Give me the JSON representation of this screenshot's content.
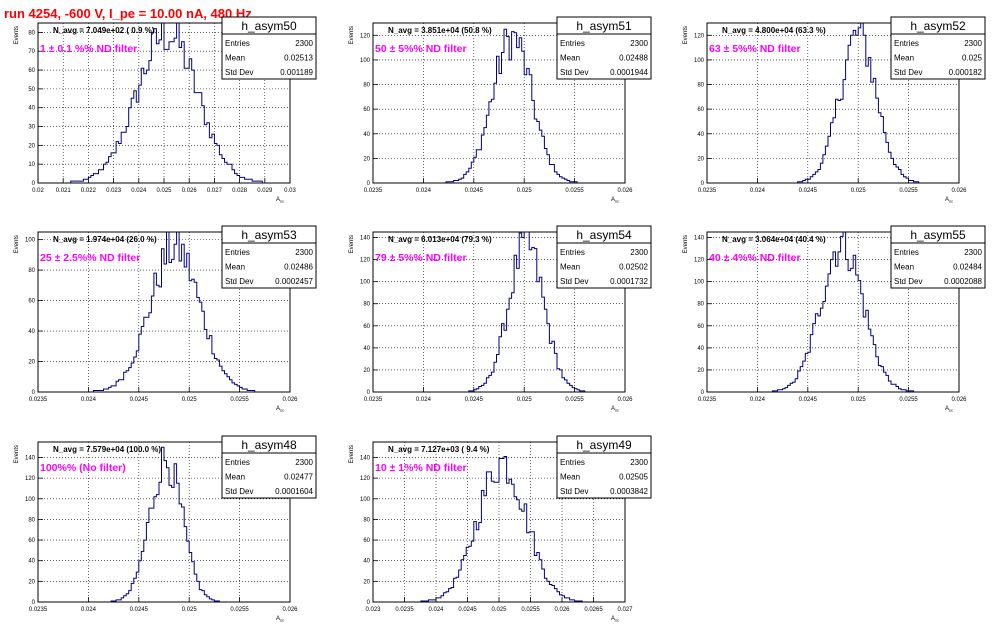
{
  "page_title": "run 4254,  -600 V, I_pe = 10.00 nA, 480 Hz",
  "colors": {
    "title": "#ff0000",
    "filter_label": "#ff00ff",
    "histogram_line": "#000080",
    "frame": "#000000",
    "grid": "#000000"
  },
  "chart_data": [
    {
      "type": "bar",
      "hist": "h_asym50",
      "title": "h_asym50",
      "xlabel": "A_{sc}",
      "ylabel": "Events",
      "navg_text": "N_avg = 7.049e+02 ( 0.9 %)",
      "filter_text": "1 ± 0.1 %% ND filter",
      "stats": {
        "entries_label": "Entries",
        "entries": "2300",
        "mean_label": "Mean",
        "mean": "0.02513",
        "std_label": "Std Dev",
        "std": "0.001189"
      },
      "xlim": [
        0.02,
        0.03
      ],
      "ylim": [
        0,
        85
      ],
      "grid": true,
      "xticks": [
        0.02,
        0.021,
        0.022,
        0.023,
        0.024,
        0.025,
        0.026,
        0.027,
        0.028,
        0.029,
        0.03
      ],
      "xtick_labels": [
        "0.02",
        "0.021",
        "0.022",
        "0.023",
        "0.024",
        "0.025",
        "0.026",
        "0.027",
        "0.028",
        "0.029",
        "0.03"
      ],
      "yticks": [
        0,
        10,
        20,
        30,
        40,
        50,
        60,
        70,
        80
      ],
      "ytick_labels": [
        "0",
        "10",
        "20",
        "30",
        "40",
        "50",
        "60",
        "70",
        "80"
      ],
      "peak": 82,
      "mean": 0.02513,
      "std": 0.001189
    },
    {
      "type": "bar",
      "hist": "h_asym51",
      "title": "h_asym51",
      "xlabel": "A_{sc}",
      "ylabel": "Events",
      "navg_text": "N_avg = 3.851e+04 (50.8 %)",
      "filter_text": "50 ± 5%% ND filter",
      "stats": {
        "entries_label": "Entries",
        "entries": "2300",
        "mean_label": "Mean",
        "mean": "0.02488",
        "std_label": "Std Dev",
        "std": "0.0001944"
      },
      "xlim": [
        0.0235,
        0.026
      ],
      "ylim": [
        0,
        130
      ],
      "grid": true,
      "xticks": [
        0.0235,
        0.024,
        0.0245,
        0.025,
        0.0255,
        0.026
      ],
      "xtick_labels": [
        "0.0235",
        "0.024",
        "0.0245",
        "0.025",
        "0.0255",
        "0.026"
      ],
      "yticks": [
        0,
        20,
        40,
        60,
        80,
        100,
        120
      ],
      "ytick_labels": [
        "0",
        "20",
        "40",
        "60",
        "80",
        "100",
        "120"
      ],
      "peak": 122,
      "mean": 0.02488,
      "std": 0.0001944
    },
    {
      "type": "bar",
      "hist": "h_asym52",
      "title": "h_asym52",
      "xlabel": "A_{sc}",
      "ylabel": "Events",
      "navg_text": "N_avg = 4.800e+04 (63.3 %)",
      "filter_text": "63 ± 5%% ND filter",
      "stats": {
        "entries_label": "Entries",
        "entries": "2300",
        "mean_label": "Mean",
        "mean": "0.025",
        "std_label": "Std Dev",
        "std": "0.000182"
      },
      "xlim": [
        0.0235,
        0.026
      ],
      "ylim": [
        0,
        130
      ],
      "grid": true,
      "xticks": [
        0.0235,
        0.024,
        0.0245,
        0.025,
        0.0255,
        0.026
      ],
      "xtick_labels": [
        "0.0235",
        "0.024",
        "0.0245",
        "0.025",
        "0.0255",
        "0.026"
      ],
      "yticks": [
        0,
        20,
        40,
        60,
        80,
        100,
        120
      ],
      "ytick_labels": [
        "0",
        "20",
        "40",
        "60",
        "80",
        "100",
        "120"
      ],
      "peak": 124,
      "mean": 0.025,
      "std": 0.000182
    },
    {
      "type": "bar",
      "hist": "h_asym53",
      "title": "h_asym53",
      "xlabel": "A_{sc}",
      "ylabel": "Events",
      "navg_text": "N_avg = 1.974e+04 (26.0 %)",
      "filter_text": "25 ± 2.5%% ND filter",
      "stats": {
        "entries_label": "Entries",
        "entries": "2300",
        "mean_label": "Mean",
        "mean": "0.02486",
        "std_label": "Std Dev",
        "std": "0.0002457"
      },
      "xlim": [
        0.0235,
        0.026
      ],
      "ylim": [
        0,
        105
      ],
      "grid": true,
      "xticks": [
        0.0235,
        0.024,
        0.0245,
        0.025,
        0.0255,
        0.026
      ],
      "xtick_labels": [
        "0.0235",
        "0.024",
        "0.0245",
        "0.025",
        "0.0255",
        "0.026"
      ],
      "yticks": [
        0,
        20,
        40,
        60,
        80,
        100
      ],
      "ytick_labels": [
        "0",
        "20",
        "40",
        "60",
        "80",
        "100"
      ],
      "peak": 98,
      "mean": 0.02486,
      "std": 0.0002457
    },
    {
      "type": "bar",
      "hist": "h_asym54",
      "title": "h_asym54",
      "xlabel": "A_{sc}",
      "ylabel": "Events",
      "navg_text": "N_avg = 6.013e+04 (79.3 %)",
      "filter_text": "79 ± 5%% ND filter",
      "stats": {
        "entries_label": "Entries",
        "entries": "2300",
        "mean_label": "Mean",
        "mean": "0.02502",
        "std_label": "Std Dev",
        "std": "0.0001732"
      },
      "xlim": [
        0.0235,
        0.026
      ],
      "ylim": [
        0,
        145
      ],
      "grid": true,
      "xticks": [
        0.0235,
        0.024,
        0.0245,
        0.025,
        0.0255,
        0.026
      ],
      "xtick_labels": [
        "0.0235",
        "0.024",
        "0.0245",
        "0.025",
        "0.0255",
        "0.026"
      ],
      "yticks": [
        0,
        20,
        40,
        60,
        80,
        100,
        120,
        140
      ],
      "ytick_labels": [
        "0",
        "20",
        "40",
        "60",
        "80",
        "100",
        "120",
        "140"
      ],
      "peak": 138,
      "mean": 0.02502,
      "std": 0.0001732
    },
    {
      "type": "bar",
      "hist": "h_asym55",
      "title": "h_asym55",
      "xlabel": "A_{sc}",
      "ylabel": "Events",
      "navg_text": "N_avg = 3.064e+04 (40.4 %)",
      "filter_text": "40 ± 4%% ND filter",
      "stats": {
        "entries_label": "Entries",
        "entries": "2300",
        "mean_label": "Mean",
        "mean": "0.02484",
        "std_label": "Std Dev",
        "std": "0.0002088"
      },
      "xlim": [
        0.0235,
        0.026
      ],
      "ylim": [
        0,
        145
      ],
      "grid": true,
      "xticks": [
        0.0235,
        0.024,
        0.0245,
        0.025,
        0.0255,
        0.026
      ],
      "xtick_labels": [
        "0.0235",
        "0.024",
        "0.0245",
        "0.025",
        "0.0255",
        "0.026"
      ],
      "yticks": [
        0,
        20,
        40,
        60,
        80,
        100,
        120,
        140
      ],
      "ytick_labels": [
        "0",
        "20",
        "40",
        "60",
        "80",
        "100",
        "120",
        "140"
      ],
      "peak": 140,
      "mean": 0.02484,
      "std": 0.0002088
    },
    {
      "type": "bar",
      "hist": "h_asym48",
      "title": "h_asym48",
      "xlabel": "A_{sc}",
      "ylabel": "Events",
      "navg_text": "N_avg = 7.579e+04 (100.0 %)",
      "filter_text": "100%% (No filter)",
      "stats": {
        "entries_label": "Entries",
        "entries": "2300",
        "mean_label": "Mean",
        "mean": "0.02477",
        "std_label": "Std Dev",
        "std": "0.0001604"
      },
      "xlim": [
        0.0235,
        0.026
      ],
      "ylim": [
        0,
        155
      ],
      "grid": true,
      "xticks": [
        0.0235,
        0.024,
        0.0245,
        0.025,
        0.0255,
        0.026
      ],
      "xtick_labels": [
        "0.0235",
        "0.024",
        "0.0245",
        "0.025",
        "0.0255",
        "0.026"
      ],
      "yticks": [
        0,
        20,
        40,
        60,
        80,
        100,
        120,
        140
      ],
      "ytick_labels": [
        "0",
        "20",
        "40",
        "60",
        "80",
        "100",
        "120",
        "140"
      ],
      "peak": 142,
      "mean": 0.02477,
      "std": 0.0001604
    },
    {
      "type": "bar",
      "hist": "h_asym49",
      "title": "h_asym49",
      "xlabel": "A_{sc}",
      "ylabel": "Events",
      "navg_text": "N_avg = 7.127e+03 ( 9.4 %)",
      "filter_text": "10 ± 1%% ND filter",
      "stats": {
        "entries_label": "Entries",
        "entries": "2300",
        "mean_label": "Mean",
        "mean": "0.02505",
        "std_label": "Std Dev",
        "std": "0.0003842"
      },
      "xlim": [
        0.023,
        0.027
      ],
      "ylim": [
        0,
        155
      ],
      "grid": true,
      "xticks": [
        0.023,
        0.0235,
        0.024,
        0.0245,
        0.025,
        0.0255,
        0.026,
        0.0265,
        0.027
      ],
      "xtick_labels": [
        "0.023",
        "0.0235",
        "0.024",
        "0.0245",
        "0.025",
        "0.0255",
        "0.026",
        "0.0265",
        "0.027"
      ],
      "yticks": [
        0,
        20,
        40,
        60,
        80,
        100,
        120,
        140
      ],
      "ytick_labels": [
        "0",
        "20",
        "40",
        "60",
        "80",
        "100",
        "120",
        "140"
      ],
      "peak": 140,
      "mean": 0.02505,
      "std": 0.0003842
    }
  ]
}
